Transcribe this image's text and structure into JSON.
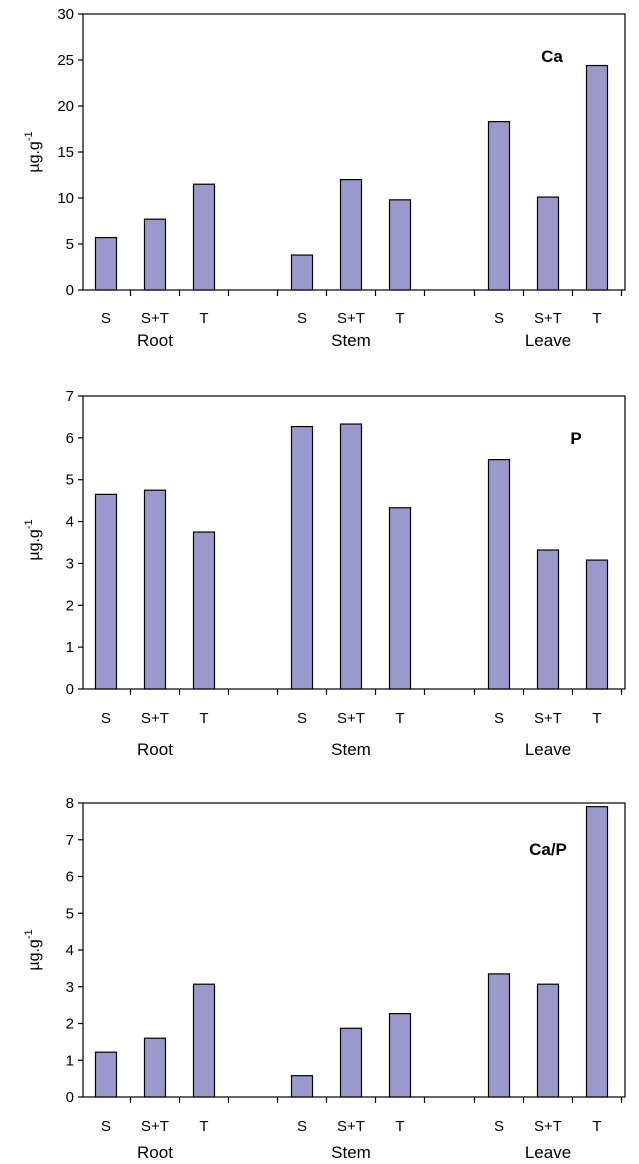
{
  "bar_color": "#9999cc",
  "bar_stroke": "#000000",
  "chart_data": [
    {
      "type": "bar",
      "title": "Ca",
      "ylabel": "µg.g",
      "ylabel_sup": "-1",
      "ylim": [
        0,
        30
      ],
      "yticks": [
        0,
        5,
        10,
        15,
        20,
        25,
        30
      ],
      "groups": [
        "Root",
        "Stem",
        "Leave"
      ],
      "categories": [
        "S",
        "S+T",
        "T"
      ],
      "values": [
        [
          5.7,
          7.7,
          11.5
        ],
        [
          3.8,
          12.0,
          9.8
        ],
        [
          18.3,
          10.1,
          24.4
        ]
      ],
      "grid": false
    },
    {
      "type": "bar",
      "title": "P",
      "ylabel": "µg.g",
      "ylabel_sup": "-1",
      "ylim": [
        0,
        7
      ],
      "yticks": [
        0,
        1,
        2,
        3,
        4,
        5,
        6,
        7
      ],
      "groups": [
        "Root",
        "Stem",
        "Leave"
      ],
      "categories": [
        "S",
        "S+T",
        "T"
      ],
      "values": [
        [
          4.65,
          4.75,
          3.75
        ],
        [
          6.27,
          6.33,
          4.33
        ],
        [
          5.48,
          3.32,
          3.08
        ]
      ],
      "grid": false
    },
    {
      "type": "bar",
      "title": "Ca/P",
      "ylabel": "µg.g",
      "ylabel_sup": "-1",
      "ylim": [
        0,
        8
      ],
      "yticks": [
        0,
        1,
        2,
        3,
        4,
        5,
        6,
        7,
        8
      ],
      "groups": [
        "Root",
        "Stem",
        "Leave"
      ],
      "categories": [
        "S",
        "S+T",
        "T"
      ],
      "values": [
        [
          1.22,
          1.6,
          3.07
        ],
        [
          0.58,
          1.87,
          2.27
        ],
        [
          3.35,
          3.07,
          7.9
        ]
      ],
      "grid": false
    }
  ]
}
